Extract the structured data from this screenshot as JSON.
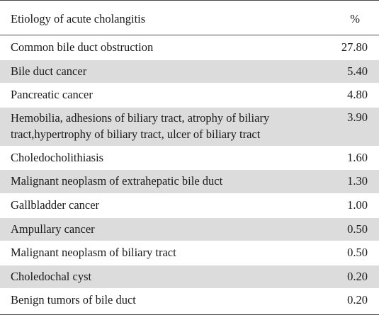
{
  "header": {
    "label": "Etiology of acute cholangitis",
    "value": "%"
  },
  "rows": [
    {
      "label": "Common bile duct obstruction",
      "value": "27.80"
    },
    {
      "label": "Bile duct cancer",
      "value": "5.40"
    },
    {
      "label": "Pancreatic cancer",
      "value": "4.80"
    },
    {
      "label": "Hemobilia, adhesions of biliary tract, atrophy of biliary tract,hypertrophy of biliary tract, ulcer of biliary tract",
      "value": "3.90"
    },
    {
      "label": "Choledocholithiasis",
      "value": "1.60"
    },
    {
      "label": "Malignant neoplasm of extrahepatic bile duct",
      "value": "1.30"
    },
    {
      "label": "Gallbladder cancer",
      "value": "1.00"
    },
    {
      "label": "Ampullary cancer",
      "value": "0.50"
    },
    {
      "label": "Malignant neoplasm of biliary tract",
      "value": "0.50"
    },
    {
      "label": "Choledochal cyst",
      "value": "0.20"
    },
    {
      "label": "Benign tumors of bile duct",
      "value": "0.20"
    }
  ]
}
